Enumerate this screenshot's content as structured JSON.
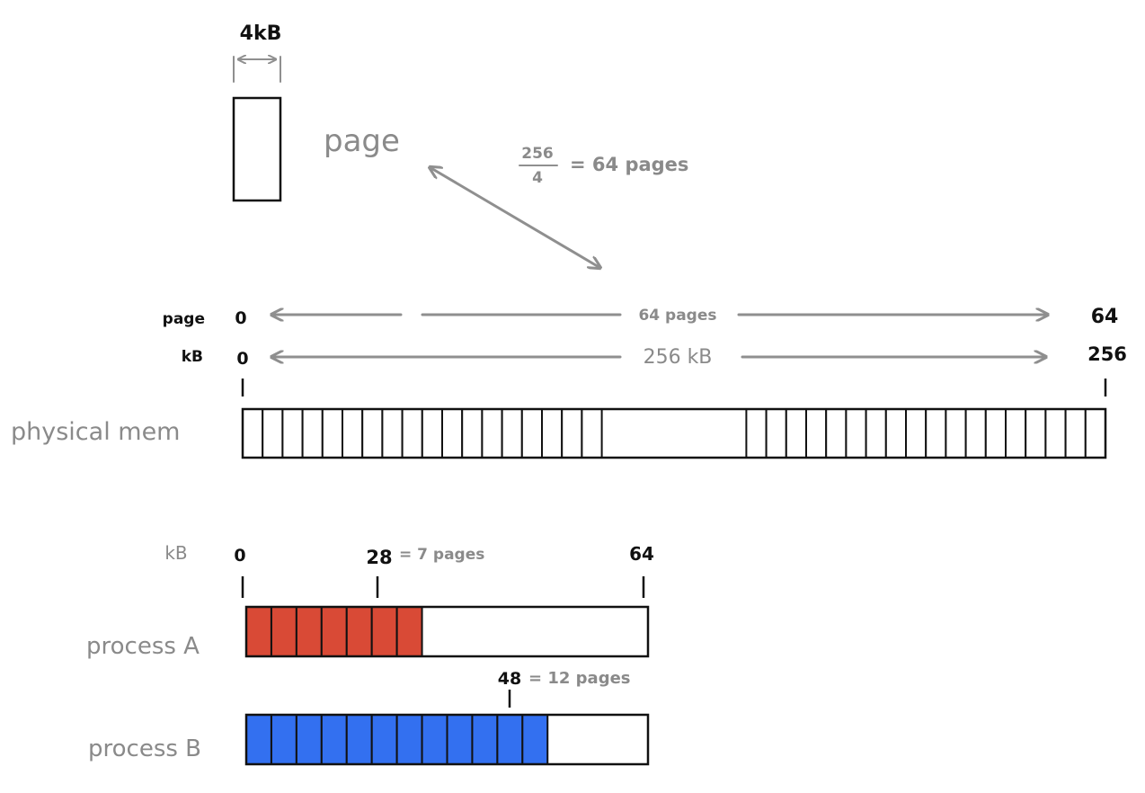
{
  "page_box": {
    "size_label": "4kB",
    "label": "page"
  },
  "formula": {
    "numerator": "256",
    "denominator": "4",
    "result": "= 64 pages"
  },
  "physical": {
    "row_label": "physical mem",
    "page_axis": {
      "unit": "page",
      "start": "0",
      "span": "64 pages",
      "end": "64"
    },
    "kb_axis": {
      "unit": "kB",
      "start": "0",
      "span": "256 kB",
      "end": "256"
    },
    "cells_left": 18,
    "cells_right": 18
  },
  "processes": {
    "axis_unit": "kB",
    "start": "0",
    "end": "64",
    "total_kb": 64,
    "a": {
      "label": "process A",
      "marker_value": "28",
      "marker_note": "= 7 pages",
      "used_kb": 28,
      "pages": 7,
      "color": "#d94a36"
    },
    "b": {
      "label": "process B",
      "marker_value": "48",
      "marker_note": "= 12 pages",
      "used_kb": 48,
      "pages": 12,
      "color": "#3370f0"
    }
  }
}
